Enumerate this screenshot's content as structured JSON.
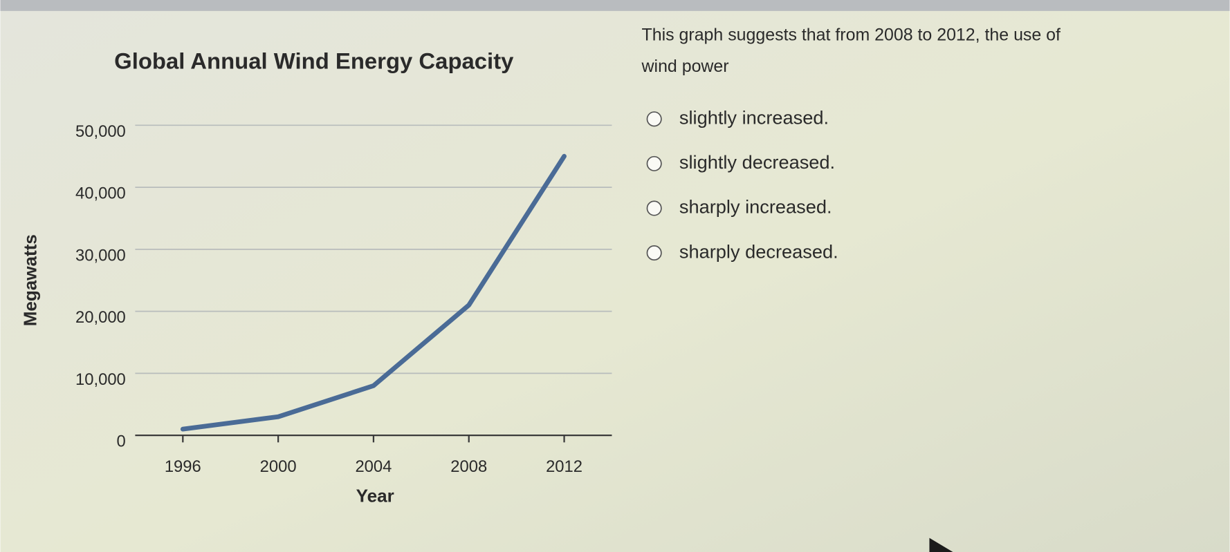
{
  "chart_data": {
    "type": "line",
    "title": "Global Annual Wind Energy Capacity",
    "x_label": "Year",
    "y_label": "Megawatts",
    "x": [
      1996,
      2000,
      2004,
      2008,
      2012
    ],
    "values": [
      1000,
      3000,
      8000,
      21000,
      45000
    ],
    "color": "#4a6b96",
    "xlim": [
      1994,
      2014
    ],
    "xticks": [
      1996,
      2000,
      2004,
      2008,
      2012
    ],
    "ylim": [
      0,
      50000
    ],
    "yticks": [
      0,
      {
        "value": 10000,
        "label": "10,000"
      },
      {
        "value": 20000,
        "label": "20,000"
      },
      {
        "value": 30000,
        "label": "30,000"
      },
      {
        "value": 40000,
        "label": "40,000"
      },
      {
        "value": 50000,
        "label": "50,000"
      }
    ],
    "grid": true
  },
  "question": {
    "prompt": [
      "This graph suggests that from 2008 to 2012, the use of",
      "wind power"
    ],
    "options": [
      "slightly increased.",
      "slightly decreased.",
      "sharply increased.",
      "sharply decreased."
    ]
  }
}
